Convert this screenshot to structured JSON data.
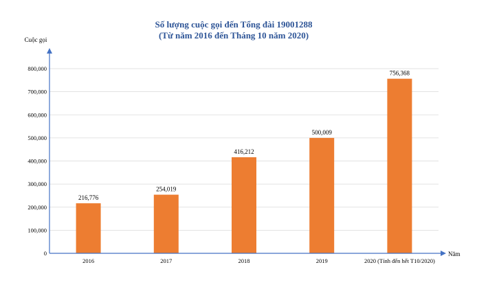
{
  "chart_data": {
    "type": "bar",
    "title": "Số lượng cuộc gọi đến Tổng đài 19001288",
    "subtitle": "(Từ năm 2016 đến Tháng 10 năm 2020)",
    "ylabel": "Cuộc gọi",
    "xlabel": "Năm",
    "categories": [
      "2016",
      "2017",
      "2018",
      "2019",
      "2020 (Tính  đến hết T10/2020)"
    ],
    "values": [
      216776,
      254019,
      416212,
      500009,
      756368
    ],
    "data_labels": [
      "216,776",
      "254,019",
      "416,212",
      "500,009",
      "756,368"
    ],
    "ylim": [
      0,
      800000
    ],
    "yticks": [
      0,
      100000,
      200000,
      300000,
      400000,
      500000,
      600000,
      700000,
      800000
    ],
    "ytick_labels": [
      "0",
      "100,000",
      "200,000",
      "300,000",
      "400,000",
      "500,000",
      "600,000",
      "700,000",
      "800,000"
    ],
    "grid": true,
    "bar_color": "#ed7d31",
    "axis_color": "#4472c4",
    "title_color": "#2e5597"
  }
}
